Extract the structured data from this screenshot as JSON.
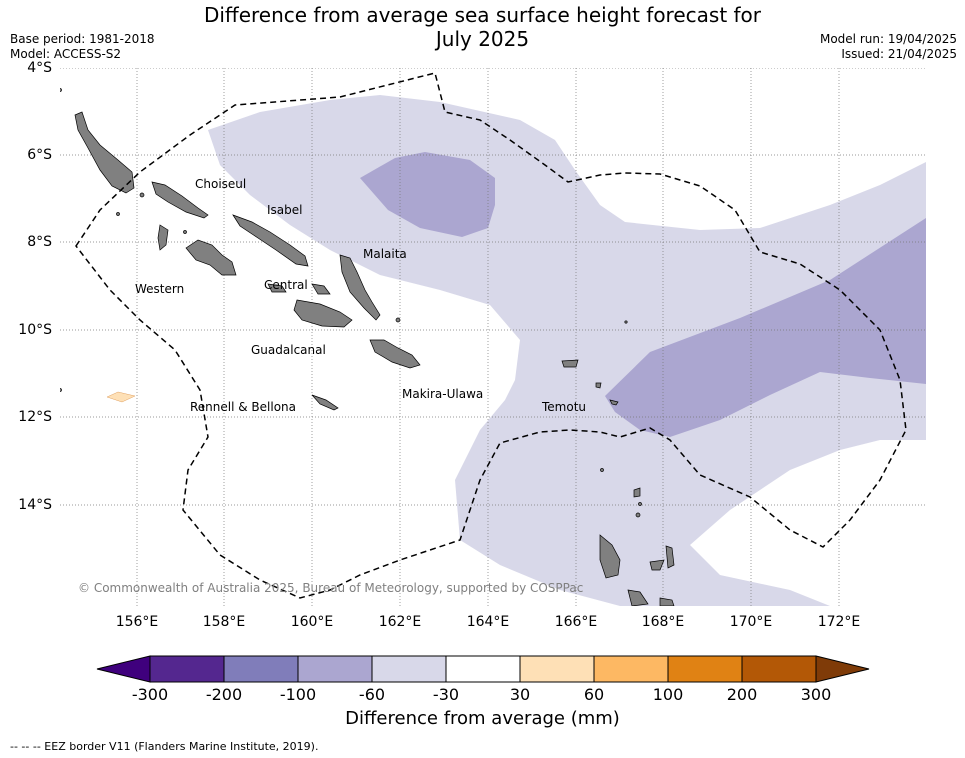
{
  "title_line1": "Difference from average sea surface height forecast for",
  "title_line2": "July 2025",
  "meta": {
    "base_period": "Base period: 1981-2018",
    "model": "Model: ACCESS-S2",
    "model_run": "Model run: 19/04/2025",
    "issued": "Issued: 21/04/2025"
  },
  "map": {
    "lat_labels": [
      "4°S",
      "6°S",
      "8°S",
      "10°S",
      "12°S",
      "14°S"
    ],
    "lon_labels": [
      "156°E",
      "158°E",
      "160°E",
      "162°E",
      "164°E",
      "166°E",
      "168°E",
      "170°E",
      "172°E"
    ],
    "provinces": [
      "Choiseul",
      "Isabel",
      "Malaita",
      "Western",
      "Central",
      "Guadalcanal",
      "Makira-Ulawa",
      "Rennell & Bellona",
      "Temotu"
    ],
    "copyright": "© Commonwealth of Australia 2025, Bureau of Meteorology, supported by COSPPac",
    "land_color": "#808080",
    "eez_style": "dashed"
  },
  "colorbar": {
    "label": "Difference from average (mm)",
    "ticks": [
      "-300",
      "-200",
      "-100",
      "-60",
      "-30",
      "30",
      "60",
      "100",
      "200",
      "300"
    ],
    "colors": [
      "#3f007d",
      "#54278f",
      "#807dba",
      "#aba6d0",
      "#d8d8e9",
      "#ffffff",
      "#fee0b6",
      "#fdb863",
      "#e08214",
      "#b35806",
      "#7f3b08"
    ]
  },
  "footnote": "--  --  -- EEZ border V11 (Flanders Marine Institute, 2019)."
}
